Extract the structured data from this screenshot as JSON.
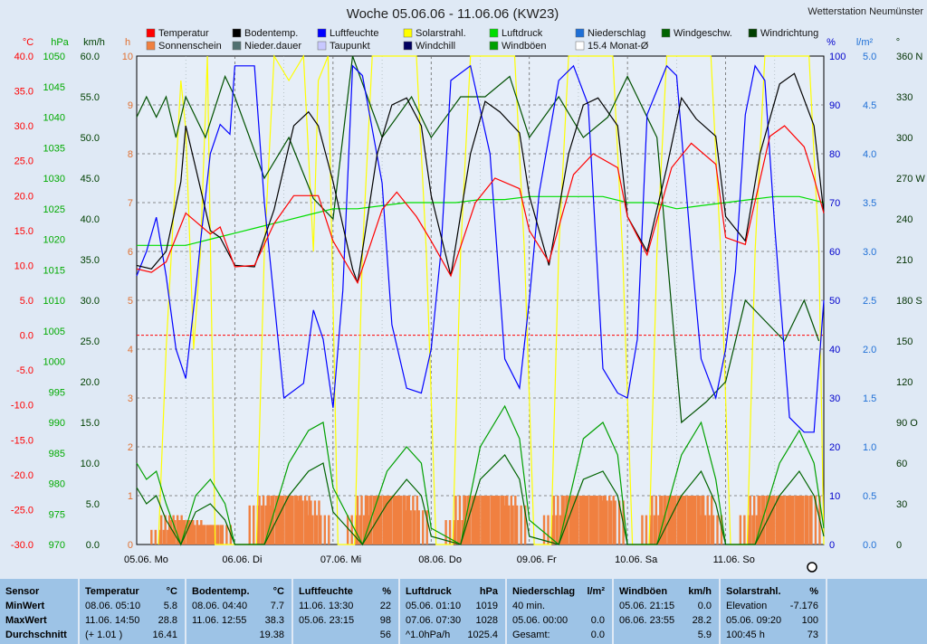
{
  "title": "Woche 05.06.06 - 11.06.06 (KW23)",
  "station": "Wetterstation Neumünster",
  "colors": {
    "temperature": "#ff0000",
    "soil": "#000000",
    "humidity": "#0000ff",
    "solar": "#ffff00",
    "pressure": "#00dd00",
    "precip": "#1e6fd6",
    "windspeed": "#006400",
    "winddir": "#005000",
    "sunshine": "#f08040",
    "precip_dur": "#507070",
    "dewpoint": "#b8b8ee",
    "windchill": "#000060",
    "gusts": "#00a000",
    "zero_line": "#ff0000"
  },
  "legend": [
    {
      "label": "Temperatur",
      "color": "#ff0000"
    },
    {
      "label": "Bodentemp.",
      "color": "#000000"
    },
    {
      "label": "Luftfeuchte",
      "color": "#0000ff"
    },
    {
      "label": "Solarstrahl.",
      "color": "#ffff00"
    },
    {
      "label": "Luftdruck",
      "color": "#00dd00"
    },
    {
      "label": "Niederschlag",
      "color": "#1e6fd6"
    },
    {
      "label": "Windgeschw.",
      "color": "#006400"
    },
    {
      "label": "Windrichtung",
      "color": "#004000"
    },
    {
      "label": "Sonnenschein",
      "color": "#f08040"
    },
    {
      "label": "Nieder.dauer",
      "color": "#507070"
    },
    {
      "label": "Taupunkt",
      "color": "#c8c8ff"
    },
    {
      "label": "Windchill",
      "color": "#000060"
    },
    {
      "label": "Windböen",
      "color": "#00a000"
    },
    {
      "label": "15.4 Monat-Ø",
      "color": "#ffffff"
    }
  ],
  "axes": {
    "temp": {
      "unit": "°C",
      "min": -30,
      "max": 40,
      "ticks": [
        "40.0",
        "35.0",
        "30.0",
        "25.0",
        "20.0",
        "15.0",
        "10.0",
        "5.0",
        "0.0",
        "-5.0",
        "-10.0",
        "-15.0",
        "-20.0",
        "-25.0",
        "-30.0"
      ]
    },
    "pressure": {
      "unit": "hPa",
      "min": 970,
      "max": 1050,
      "ticks": [
        "1050",
        "1045",
        "1040",
        "1035",
        "1030",
        "1025",
        "1020",
        "1015",
        "1010",
        "1005",
        "1000",
        "995",
        "990",
        "985",
        "980",
        "975",
        "970"
      ]
    },
    "wind": {
      "unit": "km/h",
      "min": 0,
      "max": 60,
      "ticks": [
        "60.0",
        "55.0",
        "50.0",
        "45.0",
        "40.0",
        "35.0",
        "30.0",
        "25.0",
        "20.0",
        "15.0",
        "10.0",
        "5.0",
        "0.0"
      ]
    },
    "hours": {
      "unit": "h",
      "min": 0,
      "max": 10,
      "ticks": [
        "10",
        "9",
        "8",
        "7",
        "6",
        "5",
        "4",
        "3",
        "2",
        "1",
        "0"
      ]
    },
    "humidity": {
      "unit": "%",
      "min": 0,
      "max": 100,
      "ticks": [
        "100",
        "90",
        "80",
        "70",
        "60",
        "50",
        "40",
        "30",
        "20",
        "10",
        "0"
      ]
    },
    "precip": {
      "unit": "l/m²",
      "min": 0,
      "max": 5,
      "ticks": [
        "5.0",
        "4.5",
        "4.0",
        "3.5",
        "3.0",
        "2.5",
        "2.0",
        "1.5",
        "1.0",
        "0.5",
        "0.0"
      ]
    },
    "direction": {
      "unit": "°",
      "min": 0,
      "max": 360,
      "ticks": [
        "360 N",
        "330",
        "300",
        "270 W",
        "240",
        "210",
        "180 S",
        "150",
        "120",
        "90 O",
        "60",
        "30",
        "0"
      ]
    }
  },
  "chart_data": {
    "type": "line",
    "title": "Woche 05.06.06 - 11.06.06 (KW23)",
    "x_labels": [
      "05.06.  Mo",
      "06.06.  Di",
      "07.06.  Mi",
      "08.06.  Do",
      "09.06.  Fr",
      "10.06.  Sa",
      "11.06.  So"
    ],
    "x_unit": "days since 05.06. 00:00",
    "series": [
      {
        "name": "Temperatur",
        "axis": "temp",
        "x": [
          0,
          0.15,
          0.3,
          0.5,
          0.75,
          0.85,
          1.0,
          1.2,
          1.4,
          1.6,
          1.85,
          2.0,
          2.25,
          2.5,
          2.65,
          2.85,
          3.0,
          3.2,
          3.45,
          3.65,
          3.9,
          4.0,
          4.2,
          4.45,
          4.65,
          4.9,
          5.0,
          5.2,
          5.45,
          5.65,
          5.9,
          6.0,
          6.2,
          6.45,
          6.6,
          6.8,
          6.9,
          7.0
        ],
        "y": [
          9.5,
          9.0,
          10.5,
          17.5,
          14.5,
          15.5,
          9.8,
          10.0,
          16.0,
          20.0,
          20.0,
          13.5,
          7.5,
          18.0,
          20.5,
          17.0,
          13.5,
          8.5,
          19.0,
          22.5,
          21.0,
          15.0,
          10.5,
          23.0,
          26.0,
          24.0,
          17.0,
          11.5,
          24.0,
          27.5,
          24.5,
          14.0,
          13.0,
          28.5,
          30.0,
          27.0,
          22.5,
          17.5
        ]
      },
      {
        "name": "Bodentemp.",
        "axis": "temp",
        "x": [
          0,
          0.15,
          0.3,
          0.45,
          0.5,
          0.6,
          0.75,
          0.85,
          1.0,
          1.2,
          1.4,
          1.6,
          1.75,
          1.85,
          2.0,
          2.2,
          2.25,
          2.45,
          2.6,
          2.75,
          2.9,
          3.0,
          3.2,
          3.4,
          3.55,
          3.7,
          3.9,
          4.0,
          4.2,
          4.4,
          4.55,
          4.7,
          4.9,
          5.0,
          5.2,
          5.4,
          5.55,
          5.7,
          5.9,
          6.0,
          6.2,
          6.35,
          6.55,
          6.7,
          6.9,
          7.0
        ],
        "y": [
          10.0,
          9.5,
          12.0,
          22.0,
          30.0,
          24.0,
          15.0,
          14.0,
          10.0,
          9.8,
          18.0,
          30.0,
          32.0,
          30.0,
          22.0,
          9.5,
          7.5,
          26.0,
          33.0,
          34.0,
          30.0,
          20.0,
          8.5,
          26.0,
          33.5,
          32.0,
          29.0,
          20.0,
          10.0,
          26.0,
          33.0,
          34.0,
          30.0,
          17.0,
          12.0,
          24.0,
          34.0,
          31.0,
          28.5,
          17.0,
          13.5,
          26.0,
          36.0,
          37.5,
          30.0,
          17.5
        ]
      },
      {
        "name": "Luftfeuchte",
        "axis": "humidity",
        "x": [
          0,
          0.1,
          0.2,
          0.3,
          0.4,
          0.5,
          0.6,
          0.65,
          0.75,
          0.85,
          0.95,
          1.0,
          1.2,
          1.3,
          1.5,
          1.7,
          1.8,
          1.9,
          2.0,
          2.1,
          2.2,
          2.3,
          2.5,
          2.6,
          2.75,
          2.9,
          3.0,
          3.1,
          3.2,
          3.4,
          3.6,
          3.75,
          3.9,
          4.0,
          4.1,
          4.3,
          4.45,
          4.6,
          4.75,
          4.9,
          5.0,
          5.1,
          5.2,
          5.4,
          5.5,
          5.65,
          5.75,
          5.9,
          6.0,
          6.1,
          6.2,
          6.3,
          6.4,
          6.5,
          6.65,
          6.8,
          6.9,
          7.0
        ],
        "y": [
          55,
          60,
          67,
          55,
          40,
          34,
          52,
          62,
          80,
          86,
          84,
          98,
          98,
          70,
          30,
          33,
          48,
          42,
          28,
          52,
          98,
          96,
          74,
          45,
          32,
          31,
          40,
          60,
          95,
          98,
          80,
          38,
          32,
          50,
          72,
          95,
          98,
          90,
          36,
          31,
          30,
          42,
          88,
          98,
          96,
          60,
          38,
          30,
          40,
          56,
          88,
          98,
          95,
          65,
          26,
          23,
          23,
          50
        ]
      },
      {
        "name": "Solarstrahl.",
        "axis": "humidity",
        "x": [
          0.22,
          0.3,
          0.45,
          0.5,
          0.58,
          0.65,
          0.72,
          0.8,
          1.22,
          1.3,
          1.4,
          1.55,
          1.7,
          1.8,
          1.85,
          1.95,
          2.05,
          2.22,
          2.3,
          2.4,
          2.55,
          2.7,
          2.85,
          2.95,
          3.05,
          3.22,
          3.3,
          3.4,
          3.55,
          3.7,
          3.85,
          3.95,
          4.05,
          4.22,
          4.3,
          4.4,
          4.55,
          4.7,
          4.85,
          4.95,
          5.05,
          5.22,
          5.3,
          5.4,
          5.55,
          5.7,
          5.85,
          5.95,
          6.05,
          6.22,
          6.3,
          6.4,
          6.55,
          6.7,
          6.85,
          6.95,
          7.05
        ],
        "y": [
          0,
          40,
          95,
          85,
          40,
          60,
          100,
          0,
          0,
          60,
          100,
          95,
          100,
          60,
          95,
          100,
          0,
          0,
          60,
          100,
          100,
          100,
          100,
          60,
          0,
          0,
          60,
          100,
          100,
          100,
          100,
          60,
          0,
          0,
          60,
          100,
          100,
          100,
          100,
          60,
          0,
          0,
          60,
          100,
          100,
          100,
          100,
          60,
          0,
          0,
          60,
          100,
          100,
          100,
          100,
          60,
          0
        ]
      },
      {
        "name": "Luftdruck",
        "axis": "pressure",
        "x": [
          0,
          0.5,
          0.75,
          1.0,
          1.25,
          1.5,
          1.75,
          2.0,
          2.25,
          2.5,
          2.75,
          3.0,
          3.25,
          3.5,
          3.75,
          4.0,
          4.25,
          4.5,
          4.75,
          5.0,
          5.25,
          5.5,
          5.75,
          6.0,
          6.25,
          6.5,
          6.75,
          7.0
        ],
        "y": [
          1019,
          1019,
          1020,
          1021,
          1022,
          1023,
          1024,
          1025,
          1025,
          1025.5,
          1026,
          1026,
          1026,
          1026.5,
          1026.5,
          1027,
          1027,
          1027,
          1027,
          1026,
          1026,
          1025,
          1025.5,
          1026,
          1026.5,
          1027,
          1027,
          1026
        ]
      },
      {
        "name": "Windgeschw.",
        "axis": "wind",
        "x": [
          0,
          0.1,
          0.2,
          0.3,
          0.45,
          0.6,
          0.75,
          0.9,
          1.0,
          1.3,
          1.55,
          1.75,
          1.9,
          2.0,
          2.3,
          2.55,
          2.75,
          2.9,
          3.0,
          3.3,
          3.5,
          3.75,
          3.9,
          4.0,
          4.3,
          4.55,
          4.75,
          4.9,
          5.0,
          5.3,
          5.55,
          5.75,
          5.9,
          6.0,
          6.3,
          6.55,
          6.75,
          6.9,
          7.0
        ],
        "y": [
          7,
          5,
          6,
          3,
          0,
          4,
          5,
          3,
          0,
          0,
          6,
          9,
          10,
          4,
          0,
          5,
          8,
          6,
          1,
          0,
          8,
          11,
          8,
          1,
          0,
          8,
          9,
          6,
          0,
          0,
          6,
          9,
          5,
          0,
          0,
          6,
          9,
          6,
          1
        ]
      },
      {
        "name": "Windböen",
        "axis": "wind",
        "x": [
          0,
          0.1,
          0.2,
          0.3,
          0.45,
          0.6,
          0.75,
          0.9,
          1.0,
          1.3,
          1.55,
          1.75,
          1.9,
          2.0,
          2.3,
          2.55,
          2.75,
          2.9,
          3.0,
          3.3,
          3.5,
          3.75,
          3.9,
          4.0,
          4.3,
          4.55,
          4.75,
          4.9,
          5.0,
          5.3,
          5.55,
          5.75,
          5.9,
          6.0,
          6.3,
          6.55,
          6.75,
          6.9,
          7.0
        ],
        "y": [
          10,
          8,
          9,
          5,
          0,
          6,
          8,
          5,
          0,
          0,
          10,
          14,
          15,
          7,
          0,
          9,
          12,
          10,
          2,
          0,
          12,
          17,
          13,
          3,
          0,
          13,
          15,
          11,
          0,
          0,
          11,
          15,
          8,
          0,
          0,
          10,
          14,
          10,
          2
        ]
      },
      {
        "name": "Windrichtung",
        "axis": "direction",
        "x": [
          0,
          0.1,
          0.2,
          0.3,
          0.4,
          0.5,
          0.7,
          0.9,
          1.0,
          1.3,
          1.55,
          1.8,
          2.0,
          2.2,
          2.5,
          2.8,
          3.0,
          3.3,
          3.55,
          3.8,
          4.0,
          4.3,
          4.55,
          4.8,
          5.0,
          5.3,
          5.55,
          5.8,
          6.0,
          6.2,
          6.4,
          6.6,
          6.8,
          6.95
        ],
        "y": [
          315,
          330,
          315,
          330,
          300,
          330,
          300,
          345,
          330,
          270,
          300,
          255,
          240,
          360,
          300,
          330,
          300,
          330,
          330,
          345,
          300,
          330,
          300,
          315,
          345,
          300,
          90,
          105,
          120,
          180,
          165,
          150,
          180,
          150
        ]
      },
      {
        "name": "Sonnenschein",
        "axis": "hours",
        "x": [
          0.25,
          0.35,
          0.45,
          0.55,
          0.65,
          0.75,
          0.85,
          1.25,
          1.35,
          1.45,
          1.55,
          1.65,
          1.75,
          1.85,
          2.25,
          2.35,
          2.45,
          2.55,
          2.65,
          2.75,
          2.85,
          3.25,
          3.35,
          3.45,
          3.55,
          3.65,
          3.75,
          3.85,
          4.25,
          4.35,
          4.45,
          4.55,
          4.65,
          4.75,
          4.85,
          5.25,
          5.35,
          5.45,
          5.55,
          5.65,
          5.75,
          5.85,
          6.25,
          6.35,
          6.45,
          6.55,
          6.65,
          6.75,
          6.85
        ],
        "y": [
          0.3,
          0.6,
          0.5,
          0.5,
          0.4,
          0.4,
          0.4,
          0.8,
          1.0,
          1.0,
          1.0,
          1.0,
          0.9,
          0.6,
          0.6,
          1.0,
          1.0,
          1.0,
          1.0,
          1.0,
          0.7,
          0.5,
          1.0,
          1.0,
          1.0,
          1.0,
          1.0,
          0.8,
          0.6,
          1.0,
          1.0,
          1.0,
          1.0,
          1.0,
          0.9,
          0.6,
          1.0,
          1.0,
          1.0,
          1.0,
          1.0,
          0.6,
          0.6,
          1.0,
          1.0,
          1.0,
          1.0,
          1.0,
          1.0
        ]
      }
    ],
    "ylim_temp": [
      -30,
      40
    ],
    "grid": true
  },
  "stats": {
    "sensor": {
      "header": "Sensor",
      "min": "MinWert",
      "max": "MaxWert",
      "avg": "Durchschnitt"
    },
    "temp": {
      "header": "Temperatur",
      "unit": "°C",
      "min_t": "08.06.  05:10",
      "min_v": "5.8",
      "max_t": "11.06.  14:50",
      "max_v": "28.8",
      "avg_t": "(+ 1.01 )",
      "avg_v": "16.41"
    },
    "soil": {
      "header": "Bodentemp.",
      "unit": "°C",
      "min_t": "08.06.  04:40",
      "min_v": "7.7",
      "max_t": "11.06.  12:55",
      "max_v": "38.3",
      "avg_t": "",
      "avg_v": "19.38"
    },
    "hum": {
      "header": "Luftfeuchte",
      "unit": "%",
      "min_t": "11.06.  13:30",
      "min_v": "22",
      "max_t": "05.06.  23:15",
      "max_v": "98",
      "avg_t": "",
      "avg_v": "56"
    },
    "press": {
      "header": "Luftdruck",
      "unit": "hPa",
      "min_t": "05.06.  01:10",
      "min_v": "1019",
      "max_t": "07.06.  07:30",
      "max_v": "1028",
      "avg_t": "^1.0hPa/h",
      "avg_v": "1025.4"
    },
    "precip": {
      "header": "Niederschlag",
      "unit": "l/m²",
      "min_t": "40 min.",
      "min_v": "",
      "max_t": "05.06.  00:00",
      "max_v": "0.0",
      "avg_t": "Gesamt:",
      "avg_v": "0.0"
    },
    "gust": {
      "header": "Windböen",
      "unit": "km/h",
      "min_t": "05.06.  21:15",
      "min_v": "0.0",
      "max_t": "06.06.  23:55",
      "max_v": "28.2",
      "avg_t": "",
      "avg_v": "5.9"
    },
    "solar": {
      "header": "Solarstrahl.",
      "unit": "%",
      "min_t": "Elevation",
      "min_v": "-7.176",
      "max_t": "05.06.  09:20",
      "max_v": "100",
      "avg_t": "100:45 h",
      "avg_v": "73"
    }
  }
}
